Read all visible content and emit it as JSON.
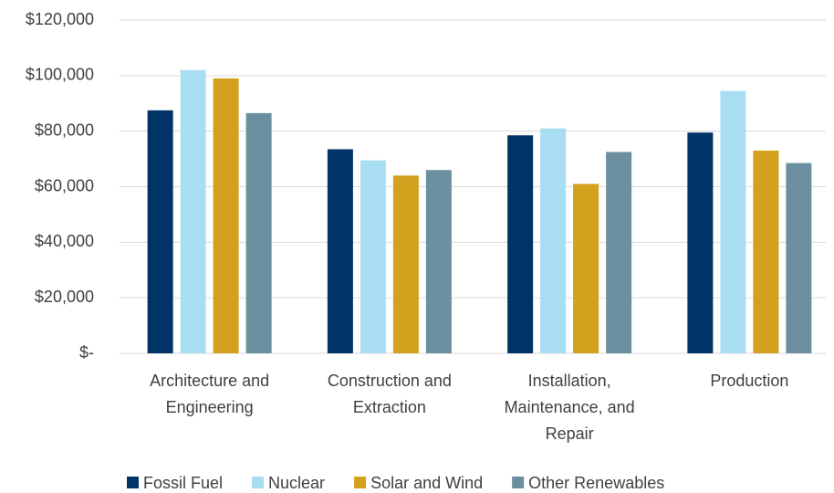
{
  "chart_data": {
    "type": "bar",
    "categories": [
      "Architecture and Engineering",
      "Construction and Extraction",
      "Installation, Maintenance, and Repair",
      "Production"
    ],
    "series": [
      {
        "name": "Fossil Fuel",
        "color": "#003366",
        "values": [
          87500,
          73500,
          78500,
          79500
        ]
      },
      {
        "name": "Nuclear",
        "color": "#a9def2",
        "values": [
          102000,
          69500,
          81000,
          94500
        ]
      },
      {
        "name": "Solar and Wind",
        "color": "#d4a11e",
        "values": [
          99000,
          64000,
          61000,
          73000
        ]
      },
      {
        "name": "Other Renewables",
        "color": "#6b8f9f",
        "values": [
          86500,
          66000,
          72500,
          68500
        ]
      }
    ],
    "ylim": [
      0,
      120000
    ],
    "yticks": [
      {
        "value": 0,
        "label": "$-"
      },
      {
        "value": 20000,
        "label": "$20,000"
      },
      {
        "value": 40000,
        "label": "$40,000"
      },
      {
        "value": 60000,
        "label": "$60,000"
      },
      {
        "value": 80000,
        "label": "$80,000"
      },
      {
        "value": 100000,
        "label": "$100,000"
      },
      {
        "value": 120000,
        "label": "$120,000"
      }
    ],
    "grid": true
  }
}
